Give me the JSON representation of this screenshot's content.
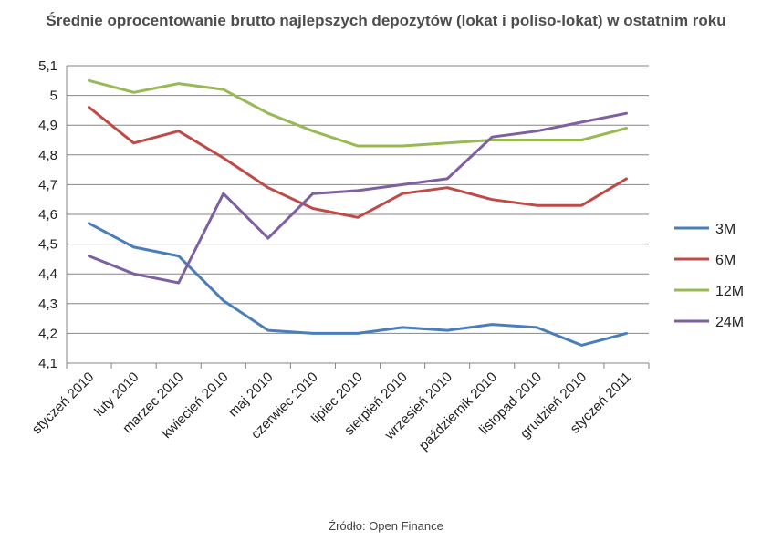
{
  "title": "Średnie oprocentowanie brutto najlepszych depozytów (lokat i poliso-lokat) w ostatnim roku",
  "source": "Źródło: Open Finance",
  "chart_data": {
    "type": "line",
    "categories": [
      "styczeń 2010",
      "luty 2010",
      "marzec 2010",
      "kwiecień 2010",
      "maj 2010",
      "czerwiec 2010",
      "lipiec 2010",
      "sierpień 2010",
      "wrzesień 2010",
      "październik 2010",
      "listopad 2010",
      "grudzień 2010",
      "styczeń 2011"
    ],
    "y_ticks": [
      "4,1",
      "4,2",
      "4,3",
      "4,4",
      "4,5",
      "4,6",
      "4,7",
      "4,8",
      "4,9",
      "5",
      "5,1"
    ],
    "ylim": [
      4.1,
      5.1
    ],
    "grid": true,
    "legend_position": "right",
    "series": [
      {
        "name": "3M",
        "color": "#4a7ebb",
        "values": [
          4.57,
          4.49,
          4.46,
          4.31,
          4.21,
          4.2,
          4.2,
          4.22,
          4.21,
          4.23,
          4.22,
          4.16,
          4.2
        ]
      },
      {
        "name": "6M",
        "color": "#be4b48",
        "values": [
          4.96,
          4.84,
          4.88,
          4.79,
          4.69,
          4.62,
          4.59,
          4.67,
          4.69,
          4.65,
          4.63,
          4.63,
          4.72
        ]
      },
      {
        "name": "12M",
        "color": "#98b954",
        "values": [
          5.05,
          5.01,
          5.04,
          5.02,
          4.94,
          4.88,
          4.83,
          4.83,
          4.84,
          4.85,
          4.85,
          4.85,
          4.89
        ]
      },
      {
        "name": "24M",
        "color": "#7d60a0",
        "values": [
          4.46,
          4.4,
          4.37,
          4.67,
          4.52,
          4.67,
          4.68,
          4.7,
          4.72,
          4.86,
          4.88,
          4.91,
          4.94
        ]
      }
    ]
  }
}
